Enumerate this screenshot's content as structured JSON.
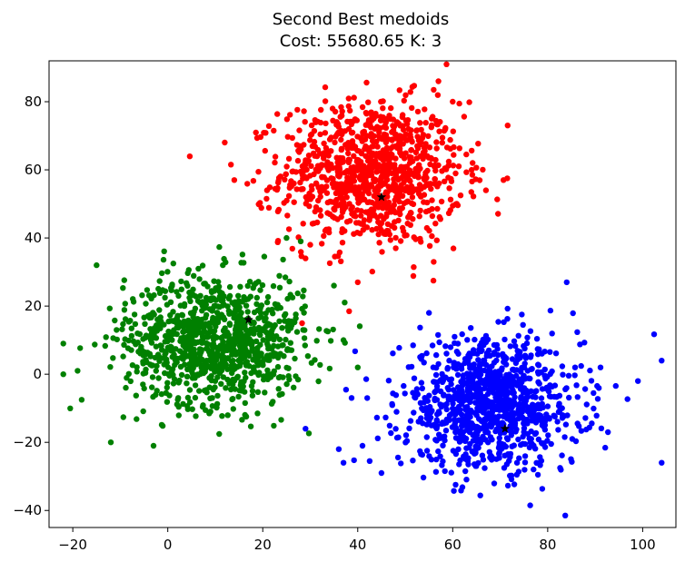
{
  "chart_data": {
    "type": "scatter",
    "title": "Second Best medoids",
    "subtitle": "Cost: 55680.65  K: 3",
    "xlabel": "",
    "ylabel": "",
    "xlim": [
      -25,
      107
    ],
    "ylim": [
      -45,
      92
    ],
    "xticks": [
      -20,
      0,
      20,
      40,
      60,
      80,
      100
    ],
    "yticks": [
      -40,
      -20,
      0,
      20,
      40,
      60,
      80
    ],
    "grid": false,
    "legend": "none",
    "clusters": [
      {
        "color": "#ff0000",
        "center": [
          43,
          59
        ],
        "spread": [
          9.5,
          10.5
        ],
        "count": 1000,
        "medoid": [
          45,
          52
        ],
        "outliers": [
          [
            40,
            27
          ],
          [
            30,
            38
          ],
          [
            29,
            34
          ],
          [
            57,
            86
          ],
          [
            60,
            80
          ],
          [
            67,
            54
          ],
          [
            64,
            60
          ],
          [
            12,
            68
          ],
          [
            14,
            57
          ],
          [
            56,
            33
          ],
          [
            48,
            37
          ]
        ]
      },
      {
        "color": "#008000",
        "center": [
          10,
          10
        ],
        "spread": [
          9.5,
          9.5
        ],
        "count": 1000,
        "medoid": [
          17,
          16
        ],
        "outliers": [
          [
            -22,
            9
          ],
          [
            -22,
            0
          ],
          [
            -19,
            1
          ],
          [
            -15,
            32
          ],
          [
            -12,
            -20
          ],
          [
            -3,
            -21
          ],
          [
            37,
            10
          ],
          [
            40,
            2
          ],
          [
            35,
            26
          ],
          [
            25,
            40
          ],
          [
            28,
            39
          ]
        ]
      },
      {
        "color": "#0000ff",
        "center": [
          68,
          -9
        ],
        "spread": [
          9.5,
          9.5
        ],
        "count": 1000,
        "medoid": [
          71,
          -16
        ],
        "outliers": [
          [
            104,
            4
          ],
          [
            104,
            -26
          ],
          [
            84,
            27
          ],
          [
            99,
            -2
          ],
          [
            29,
            -16
          ],
          [
            36,
            -22
          ],
          [
            37,
            -26
          ],
          [
            41,
            -21
          ],
          [
            45,
            -29
          ],
          [
            57,
            3
          ],
          [
            55,
            18
          ],
          [
            42,
            -7
          ]
        ]
      }
    ],
    "medoid_marker_color": "#000000"
  }
}
